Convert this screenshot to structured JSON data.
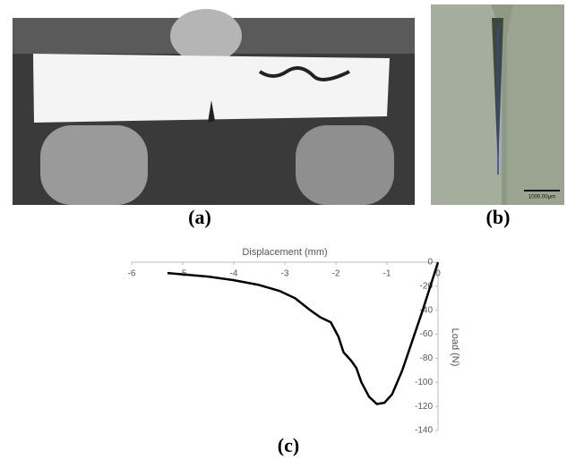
{
  "panels": {
    "a": {
      "label": "(a)"
    },
    "b": {
      "label": "(b)",
      "scale_bar": "1000.00µm"
    }
  },
  "chart_data": {
    "type": "line",
    "label": "(c)",
    "x_label": "Displacement (mm)",
    "y_label": "Load (N)",
    "x": [
      -5.3,
      -4.5,
      -4,
      -3.5,
      -3.1,
      -2.8,
      -2.5,
      -2.3,
      -2.1,
      -1.95,
      -1.85,
      -1.7,
      -1.6,
      -1.5,
      -1.35,
      -1.2,
      -1.05,
      -0.9,
      -0.7,
      -0.5,
      -0.3,
      -0.15,
      0
    ],
    "values": [
      -9,
      -12,
      -15,
      -19,
      -24,
      -30,
      -40,
      -46,
      -50,
      -62,
      -75,
      -82,
      -88,
      -100,
      -112,
      -118,
      -117,
      -110,
      -90,
      -65,
      -40,
      -20,
      0
    ],
    "color": "#000000",
    "xlim": [
      -6,
      0
    ],
    "xticks": [
      -6,
      -5,
      -4,
      -3,
      -2,
      -1,
      0
    ],
    "ylim": [
      -140,
      0
    ],
    "yticks": [
      0,
      -20,
      -40,
      -60,
      -80,
      -100,
      -120,
      -140
    ]
  }
}
